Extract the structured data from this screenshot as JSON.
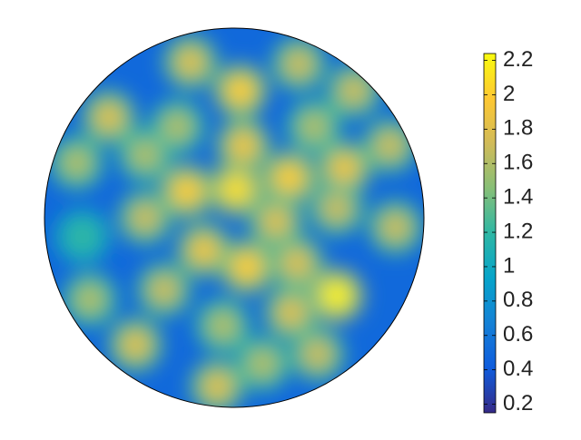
{
  "chart_data": {
    "type": "surface",
    "colormap": [
      "#352a87",
      "#0f5cdd",
      "#1481d6",
      "#06a4ca",
      "#2eb7a4",
      "#87bf77",
      "#d1bb59",
      "#fec832",
      "#f9fb0e"
    ],
    "background_value": 0.5,
    "x": [
      0.033,
      -0.23,
      0.048,
      -0.25,
      0.01,
      0.29,
      -0.16,
      0.067,
      0.22,
      0.33,
      0.54,
      0.58,
      0.54,
      -0.66,
      -0.83,
      -0.8,
      -0.76,
      -0.52,
      -0.09,
      0.3,
      0.44,
      0.85,
      0.82,
      0.63,
      0.34,
      -0.37,
      -0.47,
      -0.47,
      0.42,
      -0.3,
      0.15,
      -0.06
    ],
    "y": [
      0.67,
      0.82,
      0.38,
      0.14,
      0.15,
      0.21,
      -0.17,
      -0.26,
      -0.02,
      -0.24,
      -0.41,
      0.26,
      0.05,
      0.53,
      0.29,
      -0.1,
      -0.43,
      -0.67,
      -0.89,
      -0.5,
      -0.72,
      -0.05,
      0.38,
      0.67,
      0.81,
      -0.38,
      0,
      0.33,
      0.48,
      0.48,
      -0.77,
      -0.57
    ],
    "values": [
      2.0,
      1.8,
      1.9,
      2.0,
      2.1,
      2.0,
      1.9,
      2.0,
      1.8,
      1.8,
      2.2,
      1.9,
      1.7,
      1.8,
      1.6,
      1.2,
      1.6,
      1.8,
      1.8,
      1.8,
      1.7,
      1.7,
      1.7,
      1.7,
      1.7,
      1.7,
      1.7,
      1.6,
      1.6,
      1.6,
      1.6,
      1.6
    ],
    "clim": [
      0.15,
      2.24
    ],
    "cticks": [
      0.2,
      0.4,
      0.6,
      0.8,
      1,
      1.2,
      1.4,
      1.6,
      1.8,
      2,
      2.2
    ]
  }
}
